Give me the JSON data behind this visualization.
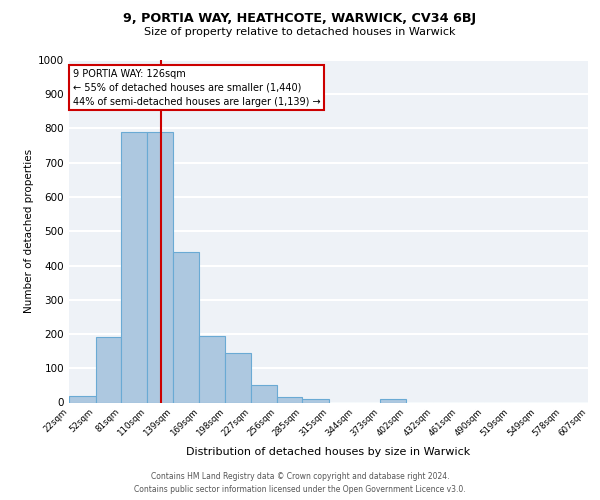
{
  "title1": "9, PORTIA WAY, HEATHCOTE, WARWICK, CV34 6BJ",
  "title2": "Size of property relative to detached houses in Warwick",
  "xlabel": "Distribution of detached houses by size in Warwick",
  "ylabel": "Number of detached properties",
  "bins": [
    22,
    52,
    81,
    110,
    139,
    169,
    198,
    227,
    256,
    285,
    315,
    344,
    373,
    402,
    432,
    461,
    490,
    519,
    549,
    578,
    607
  ],
  "counts": [
    20,
    190,
    790,
    790,
    440,
    195,
    145,
    50,
    15,
    10,
    0,
    0,
    10,
    0,
    0,
    0,
    0,
    0,
    0,
    0
  ],
  "bar_color": "#adc8e0",
  "bar_edge_color": "#6aaad4",
  "vline_x": 126,
  "vline_color": "#cc0000",
  "annotation_title": "9 PORTIA WAY: 126sqm",
  "annotation_line1": "← 55% of detached houses are smaller (1,440)",
  "annotation_line2": "44% of semi-detached houses are larger (1,139) →",
  "annotation_box_edge": "#cc0000",
  "ylim": [
    0,
    1000
  ],
  "footer1": "Contains HM Land Registry data © Crown copyright and database right 2024.",
  "footer2": "Contains public sector information licensed under the Open Government Licence v3.0.",
  "bg_color": "#eef2f7",
  "grid_color": "#ffffff"
}
